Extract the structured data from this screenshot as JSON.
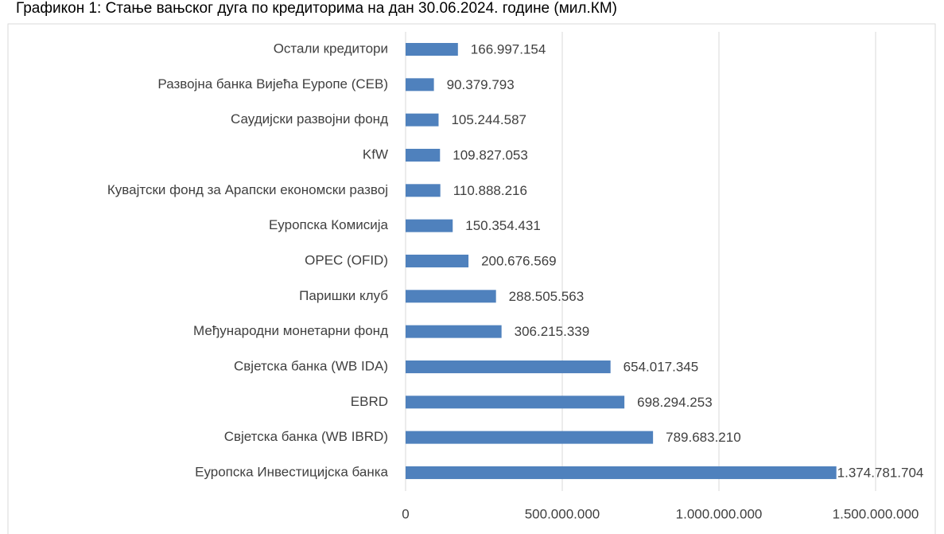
{
  "chart_data": {
    "type": "bar",
    "orientation": "horizontal",
    "title": "Графикон 1: Стање вањског дуга по кредиторима на дан 30.06.2024. године (мил.КМ)",
    "categories": [
      "Остали кредитори",
      "Развојна банка Вијећа Еуропе  (CEB)",
      "Саудијски развојни фонд",
      "KfW",
      "Кувајтски фонд за Арапски економски развој",
      "Еуропска Комисија",
      "OPEC (OFID)",
      "Паришки клуб",
      "Међународни монетарни фонд",
      "Свјетска банка (WB IDA)",
      "EBRD",
      "Свјетска банка (WB IBRD)",
      "Еуропска Инвестицијска банка"
    ],
    "values": [
      166997154,
      90379793,
      105244587,
      109827053,
      110888216,
      150354431,
      200676569,
      288505563,
      306215339,
      654017345,
      698294253,
      789683210,
      1374781704
    ],
    "value_labels": [
      "166.997.154",
      "90.379.793",
      "105.244.587",
      "109.827.053",
      "110.888.216",
      "150.354.431",
      "200.676.569",
      "288.505.563",
      "306.215.339",
      "654.017.345",
      "698.294.253",
      "789.683.210",
      "1.374.781.704"
    ],
    "color": "#4f81bd",
    "xlim": [
      0,
      1500000000
    ],
    "xticks": [
      0,
      {
        "value": 500000000,
        "label": "500.000.000"
      },
      {
        "value": 1000000000,
        "label": "1.000.000.000"
      },
      {
        "value": 1500000000,
        "label": "1.500.000.000"
      }
    ],
    "grid": true
  }
}
